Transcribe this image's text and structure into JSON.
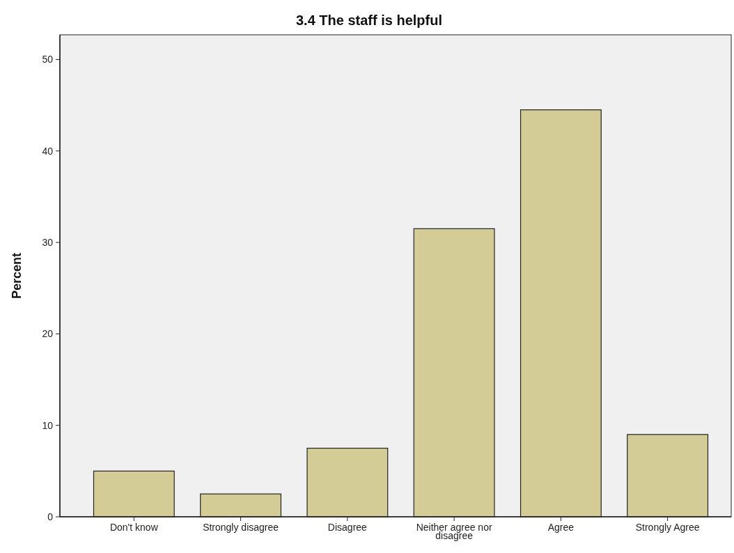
{
  "chart_data": {
    "type": "bar",
    "title": "3.4 The staff is helpful",
    "ylabel": "Percent",
    "categories": [
      "Don't know",
      "Strongly disagree",
      "Disagree",
      "Neither agree nor disagree",
      "Agree",
      "Strongly Agree"
    ],
    "values": [
      5.0,
      2.5,
      7.5,
      31.5,
      44.5,
      9.0
    ],
    "color": "#d3cc96",
    "ylim": [
      0,
      52.7
    ],
    "yticks": [
      0,
      10,
      20,
      30,
      40,
      50
    ],
    "grid": false
  }
}
